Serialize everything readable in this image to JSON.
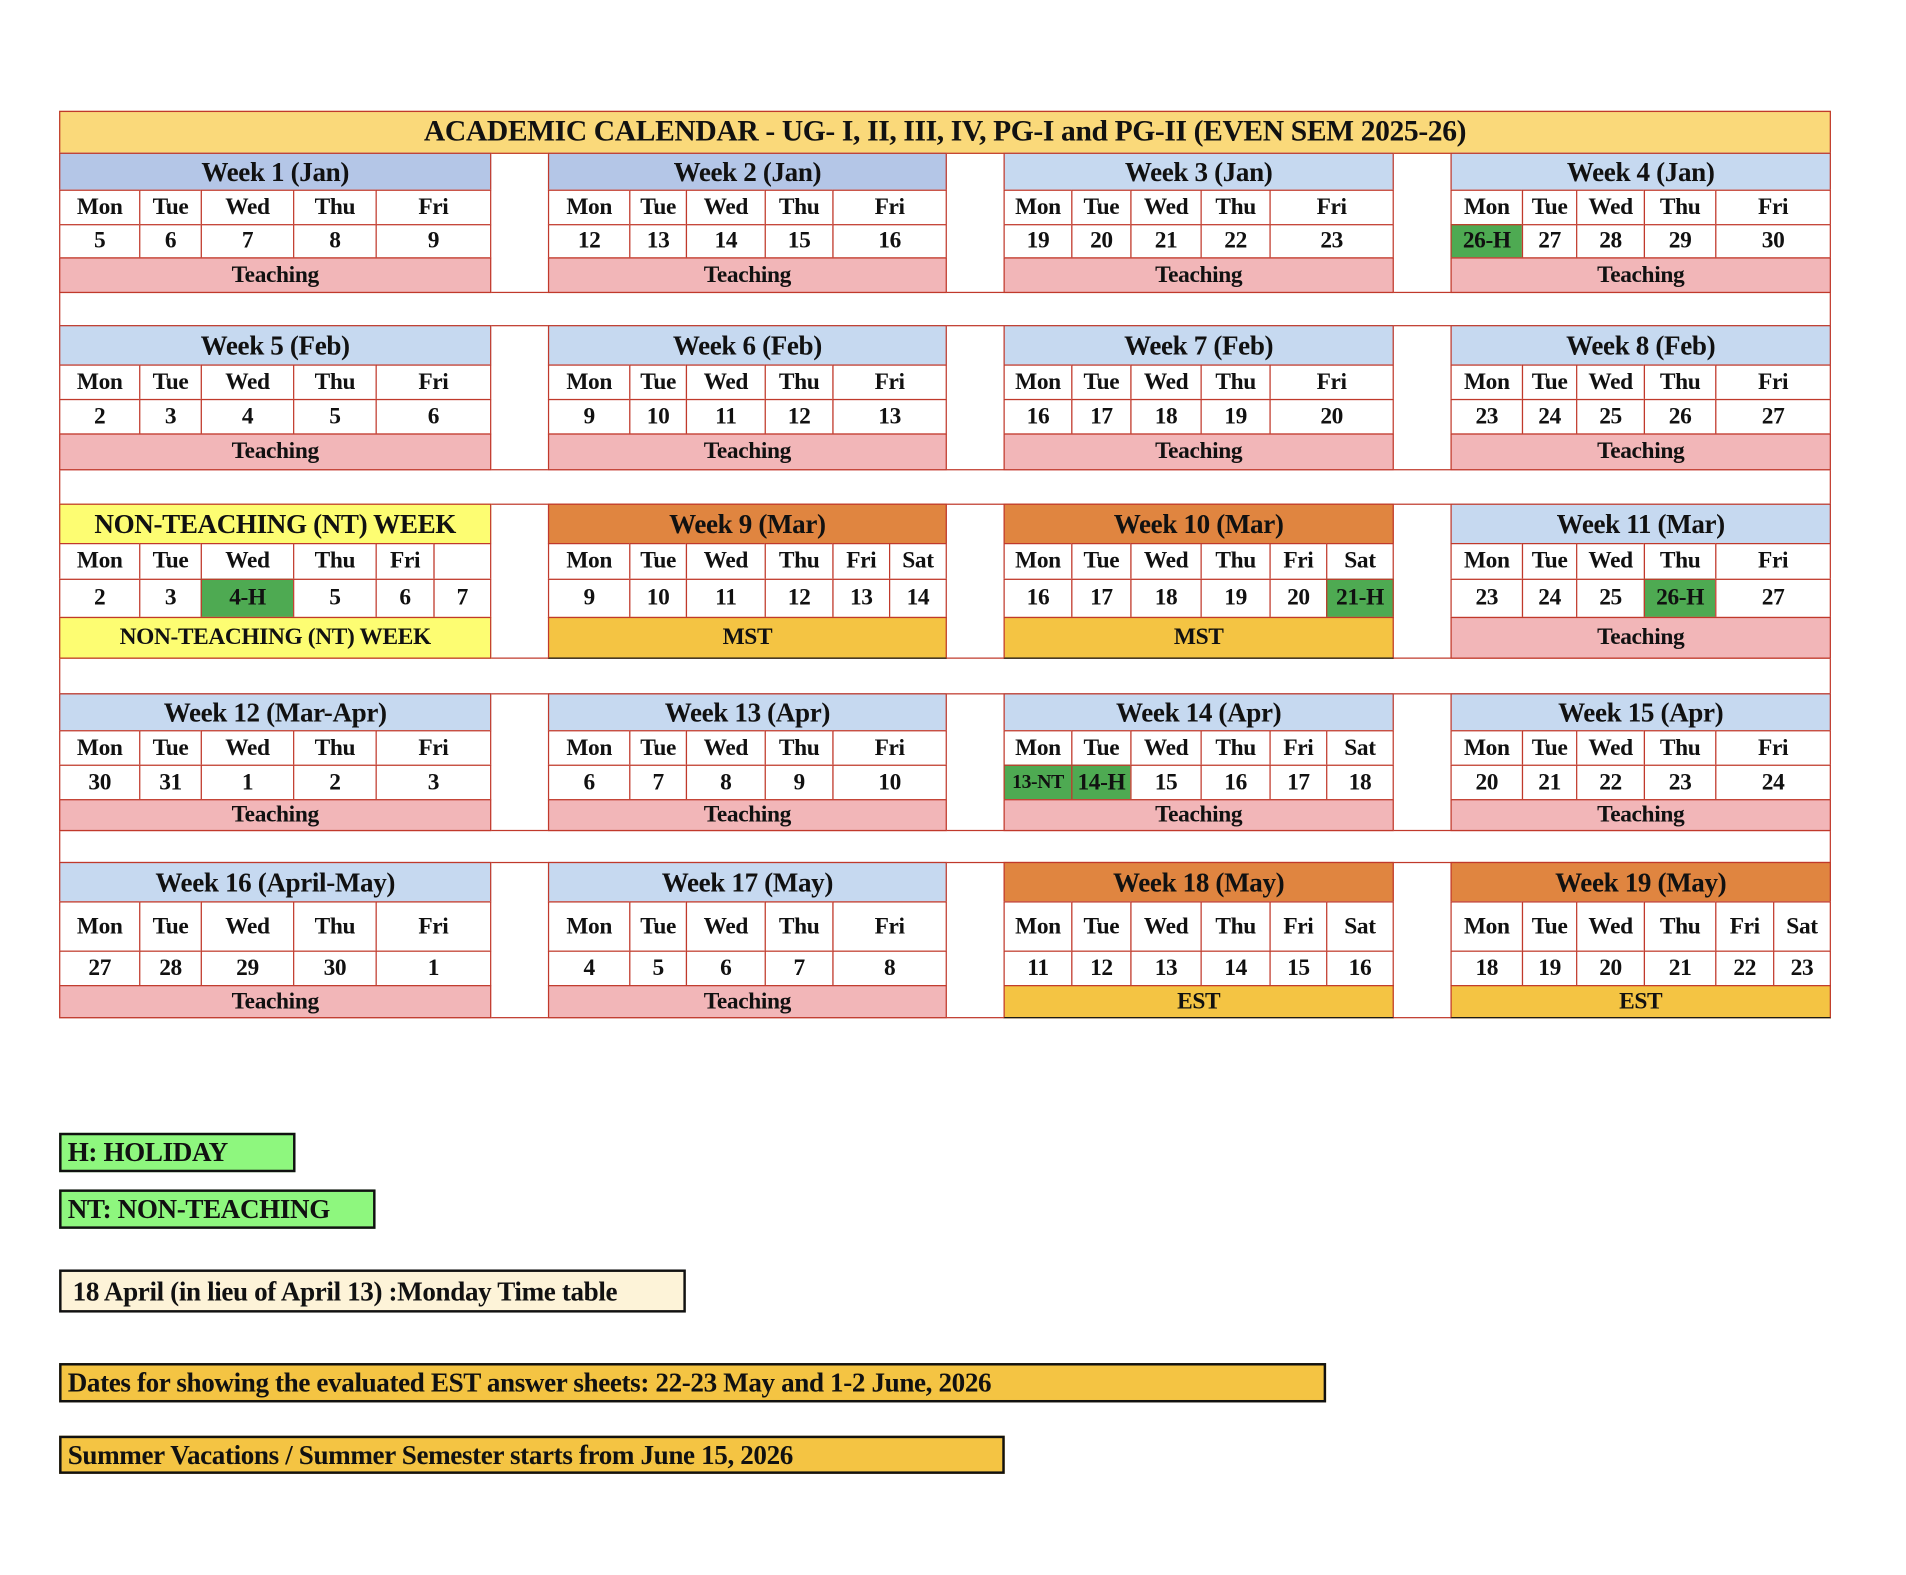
{
  "title": "ACADEMIC CALENDAR - UG- I, II, III, IV, PG-I and PG-II (EVEN SEM 2025-26)",
  "colors": {
    "border": "#c0392b",
    "title_bg": "#fad97a",
    "blue-dark": "#b4c6e7",
    "blue": "#c6d9f0",
    "orange": "#e08540",
    "yellow": "#fdfd72",
    "teaching": "#f2b6b8",
    "mst": "#f4c443",
    "est": "#f4c443",
    "nt": "#fdfd72",
    "holiday_cell": "#4eaa52",
    "legend_green": "#8ef77e",
    "note_cream": "#fdf3d8",
    "note_gold": "#f4c443"
  },
  "rows": [
    [
      {
        "title": "Week 1 (Jan)",
        "header": "blue-dark",
        "days": [
          "Mon",
          "Tue",
          "Wed",
          "Thu",
          "Fri"
        ],
        "dates": [
          {
            "v": "5"
          },
          {
            "v": "6"
          },
          {
            "v": "7"
          },
          {
            "v": "8"
          },
          {
            "v": "9"
          }
        ],
        "label": "Teaching",
        "label_style": "teaching"
      },
      {
        "title": "Week 2 (Jan)",
        "header": "blue-dark",
        "days": [
          "Mon",
          "Tue",
          "Wed",
          "Thu",
          "Fri"
        ],
        "dates": [
          {
            "v": "12"
          },
          {
            "v": "13"
          },
          {
            "v": "14"
          },
          {
            "v": "15"
          },
          {
            "v": "16"
          }
        ],
        "label": "Teaching",
        "label_style": "teaching"
      },
      {
        "title": "Week 3 (Jan)",
        "header": "blue",
        "days": [
          "Mon",
          "Tue",
          "Wed",
          "Thu",
          "Fri"
        ],
        "dates": [
          {
            "v": "19"
          },
          {
            "v": "20"
          },
          {
            "v": "21"
          },
          {
            "v": "22"
          },
          {
            "v": "23"
          }
        ],
        "label": "Teaching",
        "label_style": "teaching"
      },
      {
        "title": "Week 4 (Jan)",
        "header": "blue",
        "days": [
          "Mon",
          "Tue",
          "Wed",
          "Thu",
          "Fri"
        ],
        "dates": [
          {
            "v": "26-H",
            "holiday": true
          },
          {
            "v": "27"
          },
          {
            "v": "28"
          },
          {
            "v": "29"
          },
          {
            "v": "30"
          }
        ],
        "label": "Teaching",
        "label_style": "teaching"
      }
    ],
    [
      {
        "title": "Week 5 (Feb)",
        "header": "blue",
        "days": [
          "Mon",
          "Tue",
          "Wed",
          "Thu",
          "Fri"
        ],
        "dates": [
          {
            "v": "2"
          },
          {
            "v": "3"
          },
          {
            "v": "4"
          },
          {
            "v": "5"
          },
          {
            "v": "6"
          }
        ],
        "label": "Teaching",
        "label_style": "teaching"
      },
      {
        "title": "Week 6 (Feb)",
        "header": "blue",
        "days": [
          "Mon",
          "Tue",
          "Wed",
          "Thu",
          "Fri"
        ],
        "dates": [
          {
            "v": "9"
          },
          {
            "v": "10"
          },
          {
            "v": "11"
          },
          {
            "v": "12"
          },
          {
            "v": "13"
          }
        ],
        "label": "Teaching",
        "label_style": "teaching"
      },
      {
        "title": "Week 7 (Feb)",
        "header": "blue",
        "days": [
          "Mon",
          "Tue",
          "Wed",
          "Thu",
          "Fri"
        ],
        "dates": [
          {
            "v": "16"
          },
          {
            "v": "17"
          },
          {
            "v": "18"
          },
          {
            "v": "19"
          },
          {
            "v": "20"
          }
        ],
        "label": "Teaching",
        "label_style": "teaching"
      },
      {
        "title": "Week 8 (Feb)",
        "header": "blue",
        "days": [
          "Mon",
          "Tue",
          "Wed",
          "Thu",
          "Fri"
        ],
        "dates": [
          {
            "v": "23"
          },
          {
            "v": "24"
          },
          {
            "v": "25"
          },
          {
            "v": "26"
          },
          {
            "v": "27"
          }
        ],
        "label": "Teaching",
        "label_style": "teaching"
      }
    ],
    [
      {
        "title": "NON-TEACHING (NT) WEEK",
        "header": "yellow",
        "days": [
          "Mon",
          "Tue",
          "Wed",
          "Thu",
          "Fri",
          ""
        ],
        "dates": [
          {
            "v": "2"
          },
          {
            "v": "3"
          },
          {
            "v": "4-H",
            "holiday": true
          },
          {
            "v": "5"
          },
          {
            "v": "6"
          },
          {
            "v": "7"
          }
        ],
        "label": "NON-TEACHING (NT) WEEK",
        "label_style": "nt"
      },
      {
        "title": "Week 9 (Mar)",
        "header": "orange",
        "days": [
          "Mon",
          "Tue",
          "Wed",
          "Thu",
          "Fri",
          "Sat"
        ],
        "dates": [
          {
            "v": "9"
          },
          {
            "v": "10"
          },
          {
            "v": "11"
          },
          {
            "v": "12"
          },
          {
            "v": "13"
          },
          {
            "v": "14"
          }
        ],
        "label": "MST",
        "label_style": "mst"
      },
      {
        "title": "Week 10 (Mar)",
        "header": "orange",
        "days": [
          "Mon",
          "Tue",
          "Wed",
          "Thu",
          "Fri",
          "Sat"
        ],
        "dates": [
          {
            "v": "16"
          },
          {
            "v": "17"
          },
          {
            "v": "18"
          },
          {
            "v": "19"
          },
          {
            "v": "20"
          },
          {
            "v": "21-H",
            "holiday": true
          }
        ],
        "label": "MST",
        "label_style": "mst"
      },
      {
        "title": "Week 11 (Mar)",
        "header": "blue",
        "days": [
          "Mon",
          "Tue",
          "Wed",
          "Thu",
          "Fri"
        ],
        "dates": [
          {
            "v": "23"
          },
          {
            "v": "24"
          },
          {
            "v": "25"
          },
          {
            "v": "26-H",
            "holiday": true
          },
          {
            "v": "27"
          }
        ],
        "label": "Teaching",
        "label_style": "teaching"
      }
    ],
    [
      {
        "title": "Week 12 (Mar-Apr)",
        "header": "blue",
        "days": [
          "Mon",
          "Tue",
          "Wed",
          "Thu",
          "Fri"
        ],
        "dates": [
          {
            "v": "30"
          },
          {
            "v": "31"
          },
          {
            "v": "1"
          },
          {
            "v": "2"
          },
          {
            "v": "3"
          }
        ],
        "label": "Teaching",
        "label_style": "teaching"
      },
      {
        "title": "Week 13 (Apr)",
        "header": "blue",
        "days": [
          "Mon",
          "Tue",
          "Wed",
          "Thu",
          "Fri"
        ],
        "dates": [
          {
            "v": "6"
          },
          {
            "v": "7"
          },
          {
            "v": "8"
          },
          {
            "v": "9"
          },
          {
            "v": "10"
          }
        ],
        "label": "Teaching",
        "label_style": "teaching"
      },
      {
        "title": "Week 14 (Apr)",
        "header": "blue",
        "days": [
          "Mon",
          "Tue",
          "Wed",
          "Thu",
          "Fri",
          "Sat"
        ],
        "dates": [
          {
            "v": "13-NT",
            "holiday": true
          },
          {
            "v": "14-H",
            "holiday": true
          },
          {
            "v": "15"
          },
          {
            "v": "16"
          },
          {
            "v": "17"
          },
          {
            "v": "18"
          }
        ],
        "label": "Teaching",
        "label_style": "teaching"
      },
      {
        "title": "Week 15 (Apr)",
        "header": "blue",
        "days": [
          "Mon",
          "Tue",
          "Wed",
          "Thu",
          "Fri"
        ],
        "dates": [
          {
            "v": "20"
          },
          {
            "v": "21"
          },
          {
            "v": "22"
          },
          {
            "v": "23"
          },
          {
            "v": "24"
          }
        ],
        "label": "Teaching",
        "label_style": "teaching"
      }
    ],
    [
      {
        "title": "Week 16 (April-May)",
        "header": "blue",
        "days": [
          "Mon",
          "Tue",
          "Wed",
          "Thu",
          "Fri"
        ],
        "dates": [
          {
            "v": "27"
          },
          {
            "v": "28"
          },
          {
            "v": "29"
          },
          {
            "v": "30"
          },
          {
            "v": "1"
          }
        ],
        "label": "Teaching",
        "label_style": "teaching"
      },
      {
        "title": "Week 17 (May)",
        "header": "blue",
        "days": [
          "Mon",
          "Tue",
          "Wed",
          "Thu",
          "Fri"
        ],
        "dates": [
          {
            "v": "4"
          },
          {
            "v": "5"
          },
          {
            "v": "6"
          },
          {
            "v": "7"
          },
          {
            "v": "8"
          }
        ],
        "label": "Teaching",
        "label_style": "teaching"
      },
      {
        "title": "Week 18 (May)",
        "header": "orange",
        "days": [
          "Mon",
          "Tue",
          "Wed",
          "Thu",
          "Fri",
          "Sat"
        ],
        "dates": [
          {
            "v": "11"
          },
          {
            "v": "12"
          },
          {
            "v": "13"
          },
          {
            "v": "14"
          },
          {
            "v": "15"
          },
          {
            "v": "16"
          }
        ],
        "label": "EST",
        "label_style": "est"
      },
      {
        "title": "Week 19 (May)",
        "header": "orange",
        "days": [
          "Mon",
          "Tue",
          "Wed",
          "Thu",
          "Fri",
          "Sat"
        ],
        "dates": [
          {
            "v": "18"
          },
          {
            "v": "19"
          },
          {
            "v": "20"
          },
          {
            "v": "21"
          },
          {
            "v": "22"
          },
          {
            "v": "23"
          }
        ],
        "label": "EST",
        "label_style": "est"
      }
    ]
  ],
  "legend": {
    "holiday": "H: HOLIDAY",
    "non_teaching": "NT: NON-TEACHING"
  },
  "notes": {
    "monday_timetable": "18 April (in lieu of April 13) :Monday Time table",
    "est_answer_sheets": "Dates for showing the evaluated EST answer sheets: 22-23 May and 1-2 June, 2026",
    "summer": "Summer Vacations / Summer Semester starts from June 15, 2026"
  }
}
